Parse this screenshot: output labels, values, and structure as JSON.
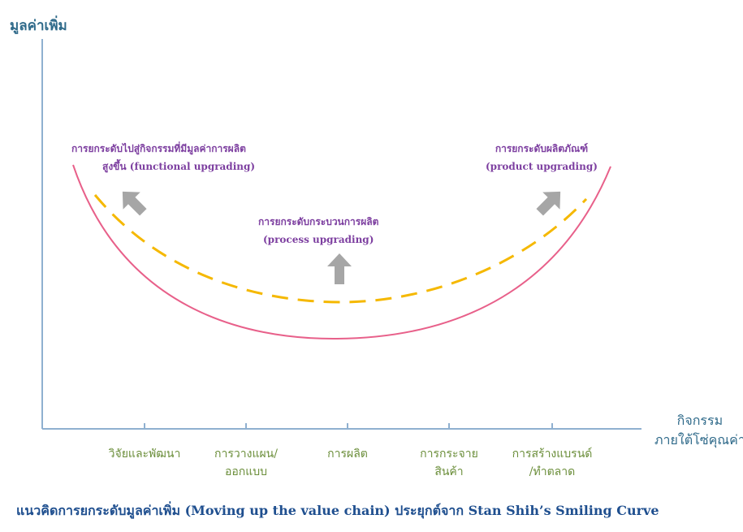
{
  "diagram": {
    "y_axis_label": "มูลค่าเพิ่ม",
    "x_axis_label_line1": "กิจกรรม",
    "x_axis_label_line2": "ภายใต้โซ่คุณค่า",
    "activities": [
      {
        "line1": "วิจัยและพัฒนา",
        "line2": ""
      },
      {
        "line1": "การวางแผน/",
        "line2": "ออกแบบ"
      },
      {
        "line1": "การผลิต",
        "line2": ""
      },
      {
        "line1": "การกระจาย",
        "line2": "สินค้า"
      },
      {
        "line1": "การสร้างแบรนด์",
        "line2": "/ทำตลาด"
      }
    ],
    "annotations": {
      "functional_line1": "การยกระดับไปสู่กิจกรรมที่มีมูลค่าการผลิต",
      "functional_line2": "สูงขึ้น (functional upgrading)",
      "process_line1": "การยกระดับกระบวนการผลิต",
      "process_line2": "(process upgrading)",
      "product_line1": "การยกระดับผลิตภัณฑ์",
      "product_line2": "(product upgrading)"
    },
    "caption": "แนวคิดการยกระดับมูลค่าเพิ่ม (Moving up the value chain) ประยุกต์จาก Stan Shih’s Smiling Curve",
    "colors": {
      "axis": "#8fb0d0",
      "solid_curve": "#e8608a",
      "dashed_curve": "#f5b800",
      "arrow": "#a6a6a6",
      "annotation_text": "#7d3fa0",
      "activity_text": "#6b8e3a",
      "axis_text": "#2f6a8a",
      "caption_text": "#1f4f8f"
    }
  }
}
